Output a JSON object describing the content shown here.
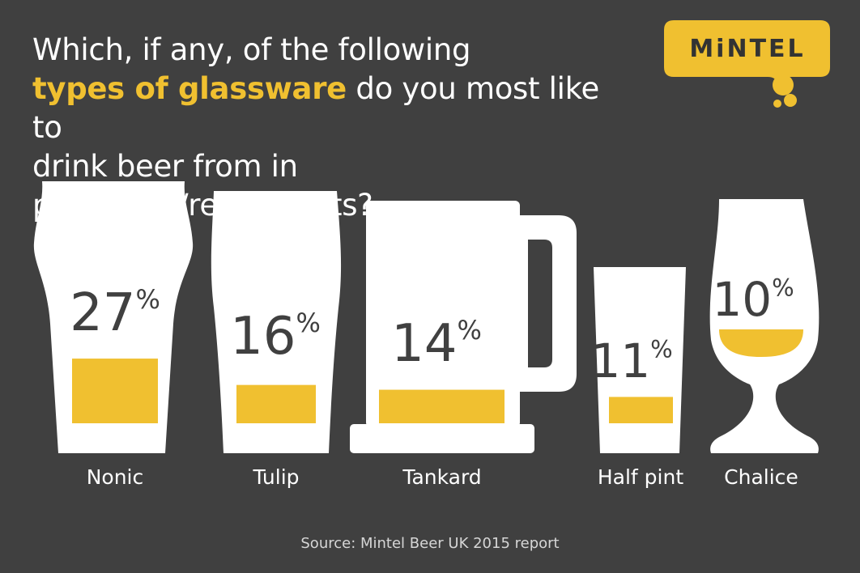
{
  "title": {
    "line1": "Which, if any, of the following",
    "highlight": "types of glassware",
    "line2_rest": " do you most like to",
    "line3": "drink beer from in pubs/bars/restaurants?"
  },
  "brand": {
    "logo_text": "MiNTEL"
  },
  "source": "Source: Mintel Beer UK 2015 report",
  "colors": {
    "background": "#404040",
    "glass": "#ffffff",
    "beer": "#f0c030",
    "text": "#404040"
  },
  "chart_data": {
    "type": "bar",
    "title": "Which, if any, of the following types of glassware do you most like to drink beer from in pubs/bars/restaurants?",
    "categories": [
      "Nonic",
      "Tulip",
      "Tankard",
      "Half pint",
      "Chalice"
    ],
    "values": [
      27,
      16,
      14,
      11,
      10
    ],
    "value_labels": [
      "27%",
      "16%",
      "14%",
      "11%",
      "10%"
    ],
    "unit": "%"
  }
}
